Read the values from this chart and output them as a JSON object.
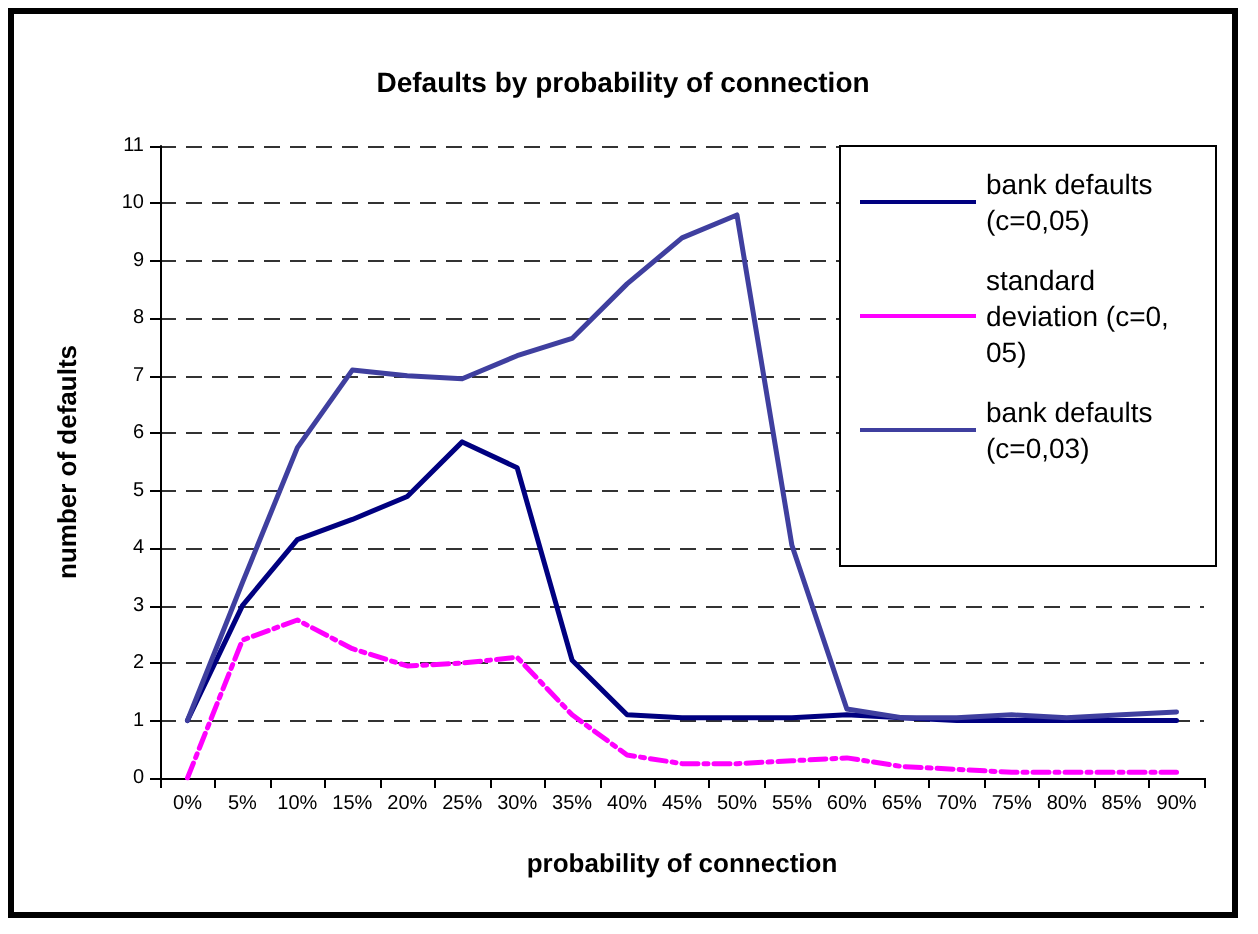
{
  "chart_data": {
    "type": "line",
    "title": "Defaults by probability of connection",
    "xlabel": "probability of connection",
    "ylabel": "number of defaults",
    "categories": [
      "0%",
      "5%",
      "10%",
      "15%",
      "20%",
      "25%",
      "30%",
      "35%",
      "40%",
      "45%",
      "50%",
      "55%",
      "60%",
      "65%",
      "70%",
      "75%",
      "80%",
      "85%",
      "90%"
    ],
    "series": [
      {
        "name": "bank defaults (c=0,05)",
        "color": "#000080",
        "line_style": "solid",
        "values": [
          1,
          3,
          4.15,
          4.5,
          4.9,
          5.85,
          5.4,
          2.05,
          1.1,
          1.05,
          1.05,
          1.05,
          1.1,
          1.05,
          1,
          1,
          1,
          1,
          1
        ]
      },
      {
        "name": "standard deviation (c=0,05)",
        "color": "#ff00ff",
        "line_style": "dashdot",
        "values": [
          0,
          2.4,
          2.75,
          2.25,
          1.95,
          2,
          2.1,
          1.1,
          0.4,
          0.25,
          0.25,
          0.3,
          0.35,
          0.2,
          0.15,
          0.1,
          0.1,
          0.1,
          0.1
        ]
      },
      {
        "name": "bank defaults (c=0,03)",
        "color": "#3f3f9f",
        "line_style": "solid",
        "values": [
          1,
          3.4,
          5.75,
          7.1,
          7,
          6.95,
          7.35,
          7.65,
          8.6,
          9.4,
          9.8,
          4.05,
          1.2,
          1.05,
          1.05,
          1.1,
          1.05,
          1.1,
          1.15
        ]
      }
    ],
    "ylim": [
      0,
      11
    ],
    "yticks": [
      0,
      1,
      2,
      3,
      4,
      5,
      6,
      7,
      8,
      9,
      10,
      11
    ],
    "grid": "y",
    "legend": "top right",
    "marker": "none"
  }
}
